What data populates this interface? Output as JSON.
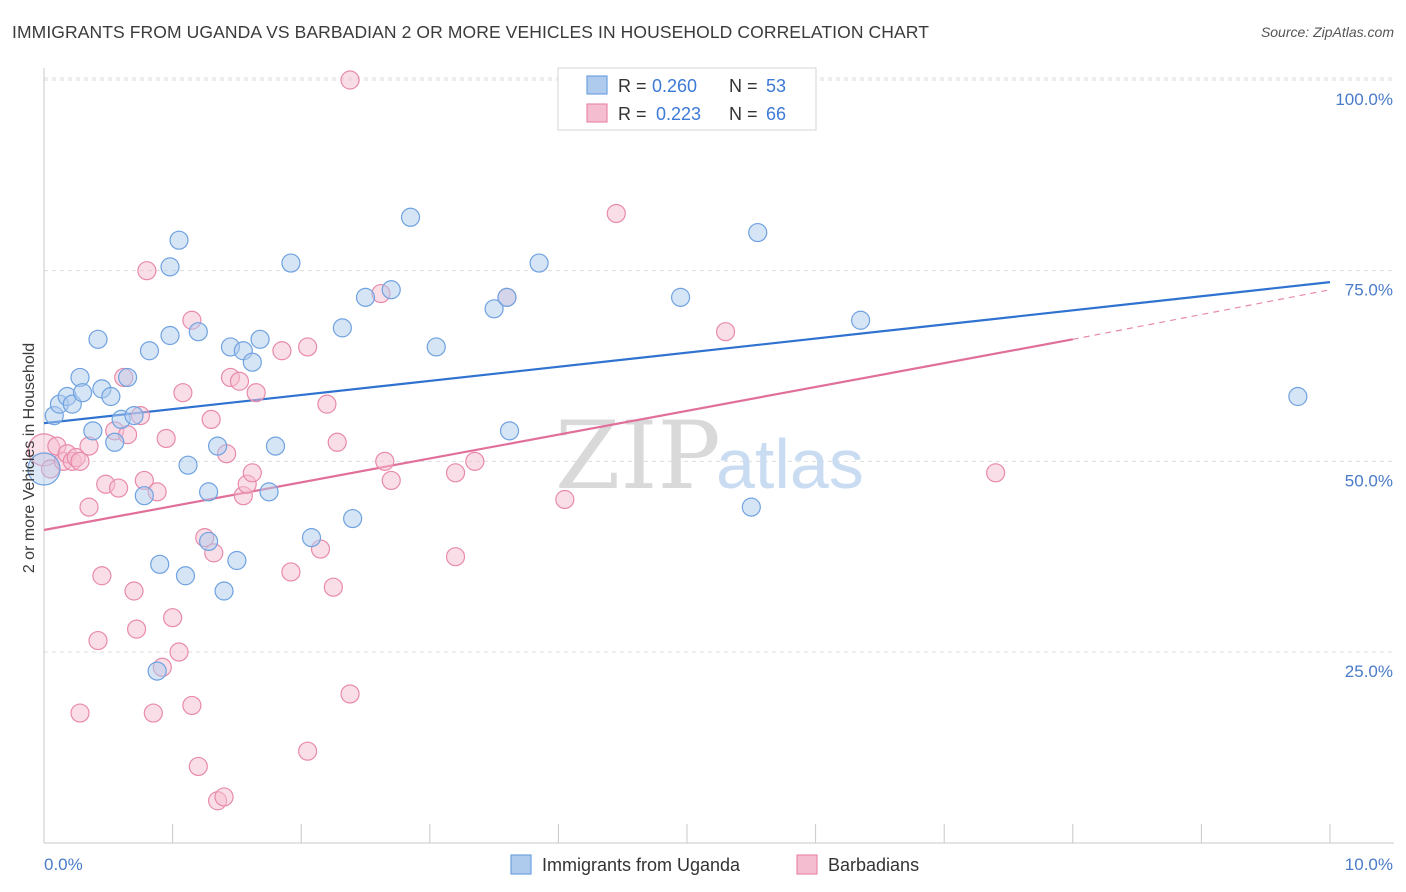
{
  "title": "IMMIGRANTS FROM UGANDA VS BARBADIAN 2 OR MORE VEHICLES IN HOUSEHOLD CORRELATION CHART",
  "source": "Source: ZipAtlas.com",
  "watermark": {
    "zip": "ZIP",
    "atlas": "atlas"
  },
  "colors": {
    "blue": "#6fa2e0",
    "blue_fill": "#aecbee",
    "blue_line": "#2f72d0",
    "pink": "#e88aab",
    "pink_fill": "#f5bdd0",
    "pink_line": "#e0709a",
    "tick_text": "#4a7bc8",
    "grid": "#dddddd"
  },
  "legend": {
    "rows": [
      {
        "r_label": "R =",
        "r_value": "0.260",
        "n_label": "N =",
        "n_value": "53"
      },
      {
        "r_label": "R =",
        "r_value": "0.223",
        "n_label": "N =",
        "n_value": "66"
      }
    ]
  },
  "bottom_legend": [
    "Immigrants from Uganda",
    "Barbadians"
  ],
  "chart_data": {
    "type": "scatter",
    "title": "IMMIGRANTS FROM UGANDA VS BARBADIAN 2 OR MORE VEHICLES IN HOUSEHOLD CORRELATION CHART",
    "xlabel": "",
    "ylabel": "2 or more Vehicles in Household",
    "xlim": [
      0,
      10
    ],
    "ylim": [
      0,
      102
    ],
    "x_tick_labels": [
      "0.0%",
      "10.0%"
    ],
    "y_tick_labels": [
      "25.0%",
      "50.0%",
      "75.0%",
      "100.0%"
    ],
    "y_tick_values": [
      25,
      50,
      75,
      100
    ],
    "grid": true,
    "legend_position": "top-center",
    "series": [
      {
        "name": "Immigrants from Uganda",
        "color": "#6fa2e0",
        "trend": {
          "x": [
            0,
            10
          ],
          "y": [
            55.0,
            73.5
          ]
        },
        "points": [
          [
            0.0,
            49.0
          ],
          [
            0.08,
            56.0
          ],
          [
            0.12,
            57.5
          ],
          [
            0.18,
            58.5
          ],
          [
            0.22,
            57.5
          ],
          [
            0.28,
            61.0
          ],
          [
            0.3,
            59.0
          ],
          [
            0.38,
            54.0
          ],
          [
            0.42,
            66.0
          ],
          [
            0.45,
            59.5
          ],
          [
            0.52,
            58.5
          ],
          [
            0.55,
            52.5
          ],
          [
            0.6,
            55.5
          ],
          [
            0.65,
            61.0
          ],
          [
            0.7,
            56.0
          ],
          [
            0.78,
            45.5
          ],
          [
            0.82,
            64.5
          ],
          [
            0.9,
            36.5
          ],
          [
            0.88,
            22.5
          ],
          [
            0.98,
            75.5
          ],
          [
            0.98,
            66.5
          ],
          [
            1.05,
            79.0
          ],
          [
            1.1,
            35.0
          ],
          [
            1.12,
            49.5
          ],
          [
            1.2,
            67.0
          ],
          [
            1.28,
            46.0
          ],
          [
            1.28,
            39.5
          ],
          [
            1.35,
            52.0
          ],
          [
            1.4,
            33.0
          ],
          [
            1.45,
            65.0
          ],
          [
            1.5,
            37.0
          ],
          [
            1.55,
            64.5
          ],
          [
            1.62,
            63.0
          ],
          [
            1.68,
            66.0
          ],
          [
            1.75,
            46.0
          ],
          [
            1.8,
            52.0
          ],
          [
            1.92,
            76.0
          ],
          [
            2.08,
            40.0
          ],
          [
            2.32,
            67.5
          ],
          [
            2.4,
            42.5
          ],
          [
            2.5,
            71.5
          ],
          [
            2.7,
            72.5
          ],
          [
            2.85,
            82.0
          ],
          [
            3.05,
            65.0
          ],
          [
            3.5,
            70.0
          ],
          [
            3.6,
            71.5
          ],
          [
            3.62,
            54.0
          ],
          [
            3.85,
            76.0
          ],
          [
            4.95,
            71.5
          ],
          [
            5.5,
            44.0
          ],
          [
            5.55,
            80.0
          ],
          [
            6.35,
            68.5
          ],
          [
            9.75,
            58.5
          ]
        ]
      },
      {
        "name": "Barbadians",
        "color": "#e88aab",
        "trend": {
          "x": [
            0,
            8
          ],
          "y": [
            41.0,
            66.0
          ]
        },
        "trend_extension": {
          "x": [
            8,
            10
          ],
          "y": [
            66.0,
            72.5
          ]
        },
        "points": [
          [
            0.0,
            51.5
          ],
          [
            0.05,
            49.0
          ],
          [
            0.1,
            52.0
          ],
          [
            0.15,
            50.0
          ],
          [
            0.18,
            51.0
          ],
          [
            0.22,
            50.0
          ],
          [
            0.25,
            50.5
          ],
          [
            0.28,
            50.0
          ],
          [
            0.28,
            17.0
          ],
          [
            0.35,
            52.0
          ],
          [
            0.35,
            44.0
          ],
          [
            0.42,
            26.5
          ],
          [
            0.45,
            35.0
          ],
          [
            0.48,
            47.0
          ],
          [
            0.55,
            54.0
          ],
          [
            0.58,
            46.5
          ],
          [
            0.62,
            61.0
          ],
          [
            0.65,
            53.5
          ],
          [
            0.7,
            33.0
          ],
          [
            0.72,
            28.0
          ],
          [
            0.75,
            56.0
          ],
          [
            0.78,
            47.5
          ],
          [
            0.8,
            75.0
          ],
          [
            0.85,
            17.0
          ],
          [
            0.88,
            46.0
          ],
          [
            0.92,
            23.0
          ],
          [
            0.95,
            53.0
          ],
          [
            1.0,
            29.5
          ],
          [
            1.05,
            25.0
          ],
          [
            1.08,
            59.0
          ],
          [
            1.15,
            18.0
          ],
          [
            1.15,
            68.5
          ],
          [
            1.2,
            10.0
          ],
          [
            1.25,
            40.0
          ],
          [
            1.3,
            55.5
          ],
          [
            1.32,
            38.0
          ],
          [
            1.35,
            5.5
          ],
          [
            1.4,
            6.0
          ],
          [
            1.42,
            51.0
          ],
          [
            1.45,
            61.0
          ],
          [
            1.52,
            60.5
          ],
          [
            1.55,
            45.5
          ],
          [
            1.58,
            47.0
          ],
          [
            1.62,
            48.5
          ],
          [
            1.65,
            59.0
          ],
          [
            1.85,
            64.5
          ],
          [
            1.92,
            35.5
          ],
          [
            2.05,
            65.0
          ],
          [
            2.05,
            12.0
          ],
          [
            2.15,
            38.5
          ],
          [
            2.2,
            57.5
          ],
          [
            2.25,
            33.5
          ],
          [
            2.28,
            52.5
          ],
          [
            2.38,
            19.5
          ],
          [
            2.38,
            100.0
          ],
          [
            2.62,
            72.0
          ],
          [
            2.65,
            50.0
          ],
          [
            2.7,
            47.5
          ],
          [
            3.2,
            48.5
          ],
          [
            3.2,
            37.5
          ],
          [
            3.35,
            50.0
          ],
          [
            3.6,
            71.5
          ],
          [
            4.05,
            45.0
          ],
          [
            4.45,
            82.5
          ],
          [
            5.3,
            67.0
          ],
          [
            7.4,
            48.5
          ]
        ]
      }
    ]
  }
}
